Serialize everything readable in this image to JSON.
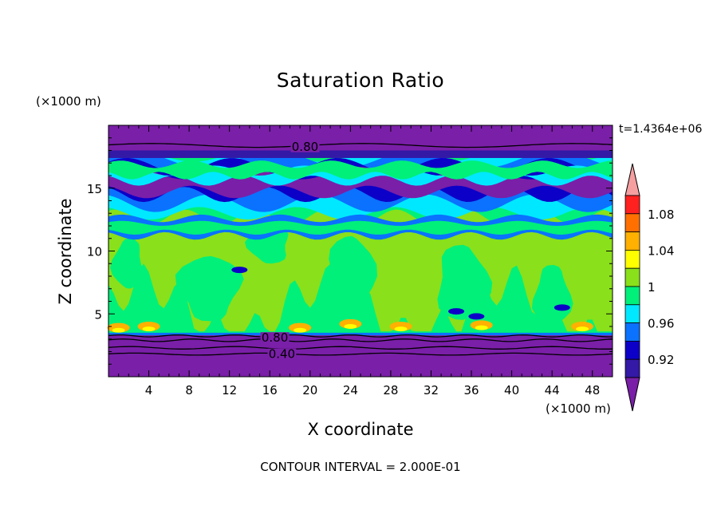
{
  "chart_data": {
    "type": "heatmap",
    "title": "Saturation Ratio",
    "xlabel": "X coordinate",
    "ylabel": "Z coordinate",
    "x_units": "(×1000 m)",
    "y_units": "(×1000 m)",
    "time_label": "t=1.4364e+06",
    "footer": "CONTOUR INTERVAL = 2.000E-01",
    "xlim": [
      0,
      50
    ],
    "ylim": [
      0,
      20
    ],
    "x_ticks": [
      4,
      8,
      12,
      16,
      20,
      24,
      28,
      32,
      36,
      40,
      44,
      48
    ],
    "y_ticks": [
      5,
      10,
      15
    ],
    "colorbar": {
      "levels": [
        0.92,
        0.94,
        0.96,
        0.98,
        1.0,
        1.02,
        1.04,
        1.06,
        1.08,
        1.1
      ],
      "tick_labels": [
        "0.92",
        "0.96",
        "1",
        "1.04",
        "1.08"
      ],
      "colors": [
        "#7a1fa8",
        "#3319a5",
        "#0c00c8",
        "#0a72ff",
        "#00e8ff",
        "#00f07a",
        "#8ae01a",
        "#ffff00",
        "#ffb000",
        "#ff7000",
        "#ff2020",
        "#f59fa0"
      ]
    },
    "contour_labels": [
      {
        "text": "0.80",
        "x": 19.5,
        "y": 18.3
      },
      {
        "text": "0.80",
        "x": 16.5,
        "y": 3.1
      },
      {
        "text": "0.40",
        "x": 17.2,
        "y": 1.8
      }
    ],
    "regions": [
      {
        "level": "<0.90",
        "z_range": [
          0,
          3.3
        ]
      },
      {
        "level": "<0.90",
        "z_range": [
          18,
          20
        ]
      },
      {
        "level": "1.00-1.02",
        "z_range": [
          3.3,
          13
        ]
      },
      {
        "level": "0.94-0.98",
        "z_range": [
          14,
          17.5
        ]
      }
    ]
  }
}
